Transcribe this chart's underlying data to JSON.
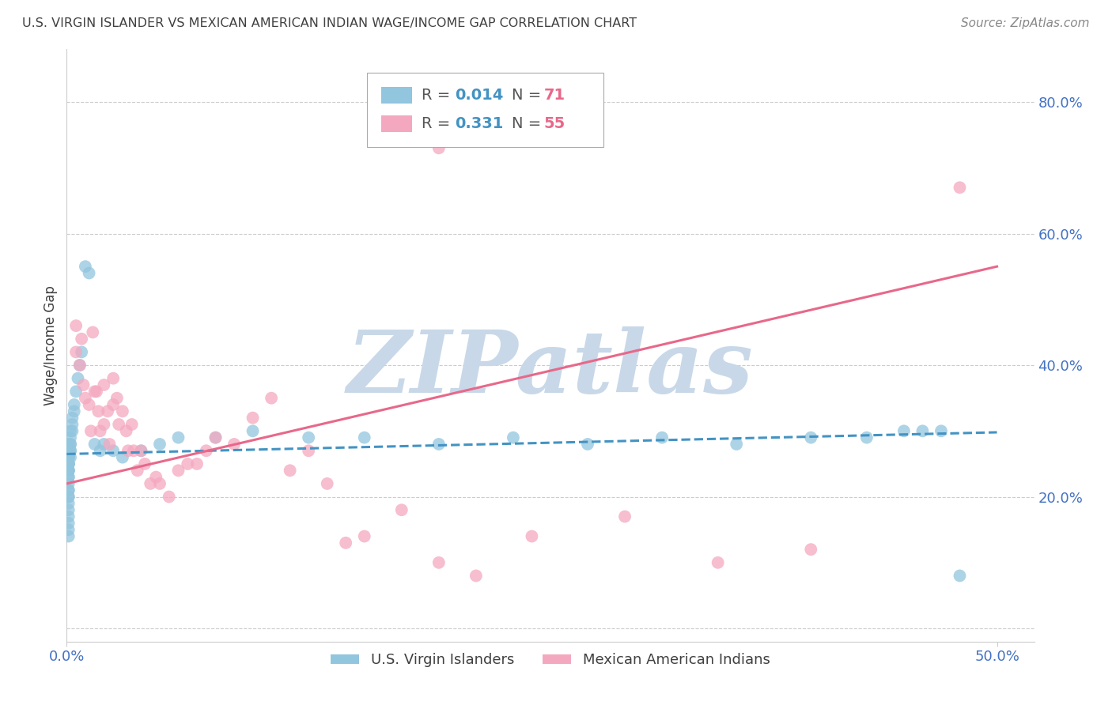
{
  "title": "U.S. VIRGIN ISLANDER VS MEXICAN AMERICAN INDIAN WAGE/INCOME GAP CORRELATION CHART",
  "source": "Source: ZipAtlas.com",
  "ylabel": "Wage/Income Gap",
  "watermark": "ZIPatlas",
  "xlim": [
    0.0,
    0.52
  ],
  "ylim": [
    -0.02,
    0.88
  ],
  "ytick_positions": [
    0.0,
    0.2,
    0.4,
    0.6,
    0.8
  ],
  "ytick_labels": [
    "",
    "20.0%",
    "40.0%",
    "60.0%",
    "80.0%"
  ],
  "xtick_positions": [
    0.0,
    0.5
  ],
  "xtick_labels": [
    "0.0%",
    "50.0%"
  ],
  "legend_labels": [
    "U.S. Virgin Islanders",
    "Mexican American Indians"
  ],
  "blue_R": "0.014",
  "blue_N": "71",
  "pink_R": "0.331",
  "pink_N": "55",
  "blue_scatter_x": [
    0.001,
    0.001,
    0.001,
    0.001,
    0.001,
    0.001,
    0.001,
    0.001,
    0.001,
    0.001,
    0.001,
    0.001,
    0.001,
    0.001,
    0.001,
    0.001,
    0.001,
    0.001,
    0.001,
    0.001,
    0.001,
    0.001,
    0.001,
    0.001,
    0.001,
    0.001,
    0.001,
    0.001,
    0.001,
    0.001,
    0.002,
    0.002,
    0.002,
    0.002,
    0.002,
    0.002,
    0.002,
    0.003,
    0.003,
    0.003,
    0.004,
    0.004,
    0.005,
    0.006,
    0.007,
    0.008,
    0.01,
    0.012,
    0.015,
    0.018,
    0.02,
    0.025,
    0.03,
    0.04,
    0.05,
    0.06,
    0.08,
    0.1,
    0.13,
    0.16,
    0.2,
    0.24,
    0.28,
    0.32,
    0.36,
    0.4,
    0.43,
    0.45,
    0.46,
    0.47,
    0.48
  ],
  "blue_scatter_y": [
    0.28,
    0.27,
    0.27,
    0.27,
    0.26,
    0.26,
    0.26,
    0.26,
    0.25,
    0.25,
    0.25,
    0.25,
    0.25,
    0.24,
    0.24,
    0.24,
    0.24,
    0.23,
    0.23,
    0.22,
    0.21,
    0.21,
    0.2,
    0.2,
    0.19,
    0.18,
    0.17,
    0.16,
    0.15,
    0.14,
    0.3,
    0.29,
    0.28,
    0.28,
    0.27,
    0.27,
    0.26,
    0.32,
    0.31,
    0.3,
    0.34,
    0.33,
    0.36,
    0.38,
    0.4,
    0.42,
    0.55,
    0.54,
    0.28,
    0.27,
    0.28,
    0.27,
    0.26,
    0.27,
    0.28,
    0.29,
    0.29,
    0.3,
    0.29,
    0.29,
    0.28,
    0.29,
    0.28,
    0.29,
    0.28,
    0.29,
    0.29,
    0.3,
    0.3,
    0.3,
    0.08
  ],
  "pink_scatter_x": [
    0.005,
    0.005,
    0.007,
    0.008,
    0.009,
    0.01,
    0.012,
    0.013,
    0.014,
    0.015,
    0.016,
    0.017,
    0.018,
    0.02,
    0.02,
    0.022,
    0.023,
    0.025,
    0.025,
    0.027,
    0.028,
    0.03,
    0.032,
    0.033,
    0.035,
    0.036,
    0.038,
    0.04,
    0.042,
    0.045,
    0.048,
    0.05,
    0.055,
    0.06,
    0.065,
    0.07,
    0.075,
    0.08,
    0.09,
    0.1,
    0.11,
    0.12,
    0.13,
    0.14,
    0.15,
    0.16,
    0.18,
    0.2,
    0.22,
    0.25,
    0.3,
    0.35,
    0.4,
    0.48,
    0.2
  ],
  "pink_scatter_y": [
    0.46,
    0.42,
    0.4,
    0.44,
    0.37,
    0.35,
    0.34,
    0.3,
    0.45,
    0.36,
    0.36,
    0.33,
    0.3,
    0.37,
    0.31,
    0.33,
    0.28,
    0.38,
    0.34,
    0.35,
    0.31,
    0.33,
    0.3,
    0.27,
    0.31,
    0.27,
    0.24,
    0.27,
    0.25,
    0.22,
    0.23,
    0.22,
    0.2,
    0.24,
    0.25,
    0.25,
    0.27,
    0.29,
    0.28,
    0.32,
    0.35,
    0.24,
    0.27,
    0.22,
    0.13,
    0.14,
    0.18,
    0.1,
    0.08,
    0.14,
    0.17,
    0.1,
    0.12,
    0.67,
    0.73
  ],
  "blue_line_x": [
    0.0,
    0.5
  ],
  "blue_line_y": [
    0.265,
    0.298
  ],
  "pink_line_x": [
    0.0,
    0.5
  ],
  "pink_line_y": [
    0.22,
    0.55
  ],
  "grid_color": "#cccccc",
  "bg_color": "#ffffff",
  "blue_color": "#92c5de",
  "pink_color": "#f4a8bf",
  "blue_line_color": "#4393c3",
  "pink_line_color": "#e8688a",
  "watermark_color": "#c8d8e8",
  "title_color": "#404040",
  "tick_label_color": "#4472c4",
  "source_color": "#888888"
}
